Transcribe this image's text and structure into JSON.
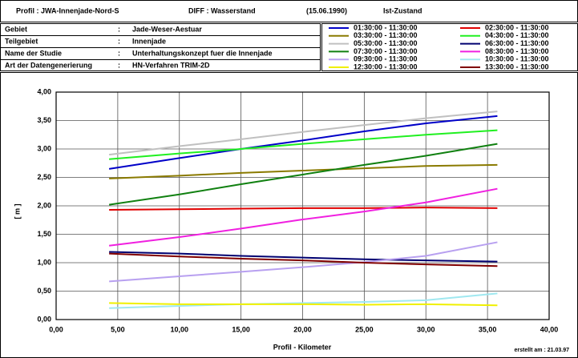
{
  "header": {
    "profil": "Profil  :  JWA-Innenjade-Nord-S",
    "diff": "DIFF :  Wasserstand",
    "date": "(15.06.1990)",
    "state": "Ist-Zustand"
  },
  "info": {
    "rows": [
      [
        "Gebiet",
        ":",
        "Jade-Weser-Aestuar"
      ],
      [
        "Teilgebiet",
        ":",
        "Innenjade"
      ],
      [
        "Name der Studie",
        ":",
        "Unterhaltungskonzept fuer die Innenjade"
      ],
      [
        "Art der Datengenerierung",
        ":",
        "HN-Verfahren TRIM-2D"
      ]
    ]
  },
  "footer": "erstellt am :   21.03.97",
  "chart_data": {
    "type": "line",
    "y_label": "[ m ]",
    "x_label": "Profil - Kilometer",
    "x": [
      4.3,
      10,
      15,
      20,
      25,
      30,
      35.8
    ],
    "xlim": [
      0,
      40
    ],
    "xticks": [
      {
        "value": 0,
        "label": "0,00"
      },
      {
        "value": 5,
        "label": "5,00"
      },
      {
        "value": 10,
        "label": "10,00"
      },
      {
        "value": 15,
        "label": "15,00"
      },
      {
        "value": 20,
        "label": "20,00"
      },
      {
        "value": 25,
        "label": "25,00"
      },
      {
        "value": 30,
        "label": "30,00"
      },
      {
        "value": 35,
        "label": "35,00"
      },
      {
        "value": 40,
        "label": "40,00"
      }
    ],
    "ylim": [
      0,
      4
    ],
    "yticks": [
      {
        "value": 0,
        "label": "0,00"
      },
      {
        "value": 0.5,
        "label": "0,50"
      },
      {
        "value": 1,
        "label": "1,00"
      },
      {
        "value": 1.5,
        "label": "1,50"
      },
      {
        "value": 2,
        "label": "2,00"
      },
      {
        "value": 2.5,
        "label": "2,50"
      },
      {
        "value": 3,
        "label": "3,00"
      },
      {
        "value": 3.5,
        "label": "3,50"
      },
      {
        "value": 4,
        "label": "4,00"
      }
    ],
    "grid": true,
    "series": [
      {
        "name": "01:30:00  -  11:30:00",
        "color": "#0000c8",
        "values": [
          2.65,
          2.84,
          3.0,
          3.15,
          3.31,
          3.45,
          3.58
        ]
      },
      {
        "name": "02:30:00  -  11:30:00",
        "color": "#e00000",
        "values": [
          1.93,
          1.94,
          1.95,
          1.96,
          1.96,
          1.97,
          1.96
        ]
      },
      {
        "name": "03:30:00  -  11:30:00",
        "color": "#8a7a00",
        "values": [
          2.48,
          2.53,
          2.58,
          2.62,
          2.66,
          2.7,
          2.72
        ]
      },
      {
        "name": "04:30:00  -  11:30:00",
        "color": "#20f020",
        "values": [
          2.82,
          2.92,
          3.0,
          3.09,
          3.17,
          3.25,
          3.33
        ]
      },
      {
        "name": "05:30:00  -  11:30:00",
        "color": "#c0c0c0",
        "values": [
          2.9,
          3.05,
          3.17,
          3.3,
          3.42,
          3.54,
          3.66
        ]
      },
      {
        "name": "06:30:00  -  11:30:00",
        "color": "#000070",
        "values": [
          1.19,
          1.16,
          1.12,
          1.09,
          1.06,
          1.04,
          1.02
        ]
      },
      {
        "name": "07:30:00  -  11:30:00",
        "color": "#108010",
        "values": [
          2.02,
          2.2,
          2.38,
          2.55,
          2.72,
          2.88,
          3.09
        ]
      },
      {
        "name": "08:30:00  -  11:30:00",
        "color": "#f020e0",
        "values": [
          1.3,
          1.45,
          1.6,
          1.76,
          1.9,
          2.06,
          2.3
        ]
      },
      {
        "name": "09:30:00  -  11:30:00",
        "color": "#b8a0f0",
        "values": [
          0.67,
          0.76,
          0.84,
          0.92,
          1.01,
          1.12,
          1.36
        ]
      },
      {
        "name": "10:30:00  -  11:30:00",
        "color": "#a0e8f0",
        "values": [
          0.2,
          0.24,
          0.27,
          0.29,
          0.31,
          0.34,
          0.46
        ]
      },
      {
        "name": "12:30:00  -  11:30:00",
        "color": "#f0f000",
        "values": [
          0.29,
          0.27,
          0.27,
          0.27,
          0.26,
          0.27,
          0.25
        ]
      },
      {
        "name": "13:30:00  -  11:30:00",
        "color": "#800000",
        "values": [
          1.16,
          1.11,
          1.07,
          1.04,
          1.0,
          0.97,
          0.94
        ]
      }
    ]
  }
}
